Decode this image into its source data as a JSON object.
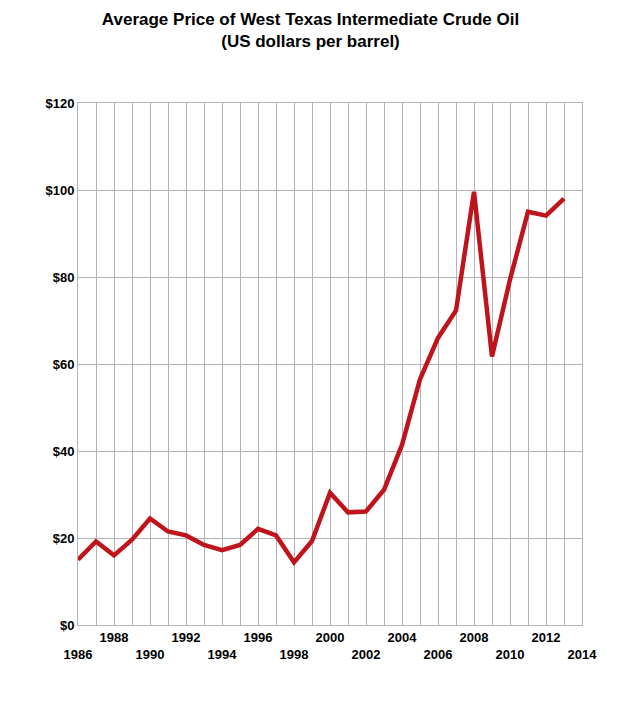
{
  "chart_data": {
    "type": "line",
    "title": "Average Price of West Texas Intermediate Crude Oil",
    "subtitle": "(US dollars per barrel)",
    "x": [
      1986,
      1987,
      1988,
      1989,
      1990,
      1991,
      1992,
      1993,
      1994,
      1995,
      1996,
      1997,
      1998,
      1999,
      2000,
      2001,
      2002,
      2003,
      2004,
      2005,
      2006,
      2007,
      2008,
      2009,
      2010,
      2011,
      2012,
      2013
    ],
    "values": [
      15.0,
      19.2,
      16.0,
      19.6,
      24.5,
      21.5,
      20.6,
      18.4,
      17.2,
      18.4,
      22.1,
      20.6,
      14.4,
      19.3,
      30.4,
      25.9,
      26.1,
      31.1,
      41.4,
      56.5,
      66.0,
      72.3,
      99.6,
      61.7,
      79.4,
      95.0,
      94.1,
      98.0
    ],
    "color": "#c0141c",
    "xlim": [
      1986,
      2014
    ],
    "xticks": [
      1986,
      1988,
      1990,
      1992,
      1994,
      1996,
      1998,
      2000,
      2002,
      2004,
      2006,
      2008,
      2010,
      2012,
      2014
    ],
    "ylim": [
      0,
      120
    ],
    "yticks": [
      {
        "value": 0,
        "label": "$0"
      },
      {
        "value": 20,
        "label": "$20"
      },
      {
        "value": 40,
        "label": "$40"
      },
      {
        "value": 60,
        "label": "$60"
      },
      {
        "value": 80,
        "label": "$80"
      },
      {
        "value": 100,
        "label": "$100"
      },
      {
        "value": 120,
        "label": "$120"
      }
    ],
    "grid": true
  }
}
